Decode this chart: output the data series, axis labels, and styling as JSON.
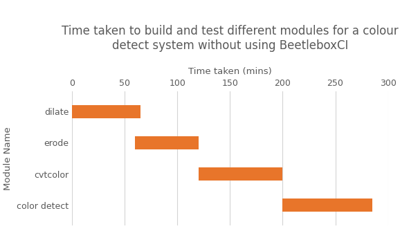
{
  "title": "Time taken to build and test different modules for a colour\ndetect system without using BeetleboxCI",
  "xlabel": "Time taken (mins)",
  "ylabel": "Module Name",
  "categories": [
    "dilate",
    "erode",
    "cvtcolor",
    "color detect"
  ],
  "bar_starts": [
    0,
    60,
    120,
    200
  ],
  "bar_ends": [
    65,
    120,
    200,
    285
  ],
  "bar_color": "#E8752A",
  "xlim": [
    0,
    300
  ],
  "xticks": [
    0,
    50,
    100,
    150,
    200,
    250,
    300
  ],
  "bar_height": 0.42,
  "title_fontsize": 12,
  "label_fontsize": 9.5,
  "tick_fontsize": 9,
  "title_color": "#595959",
  "label_color": "#595959",
  "tick_color": "#595959",
  "grid_color": "#d4d4d4",
  "background_color": "#ffffff"
}
